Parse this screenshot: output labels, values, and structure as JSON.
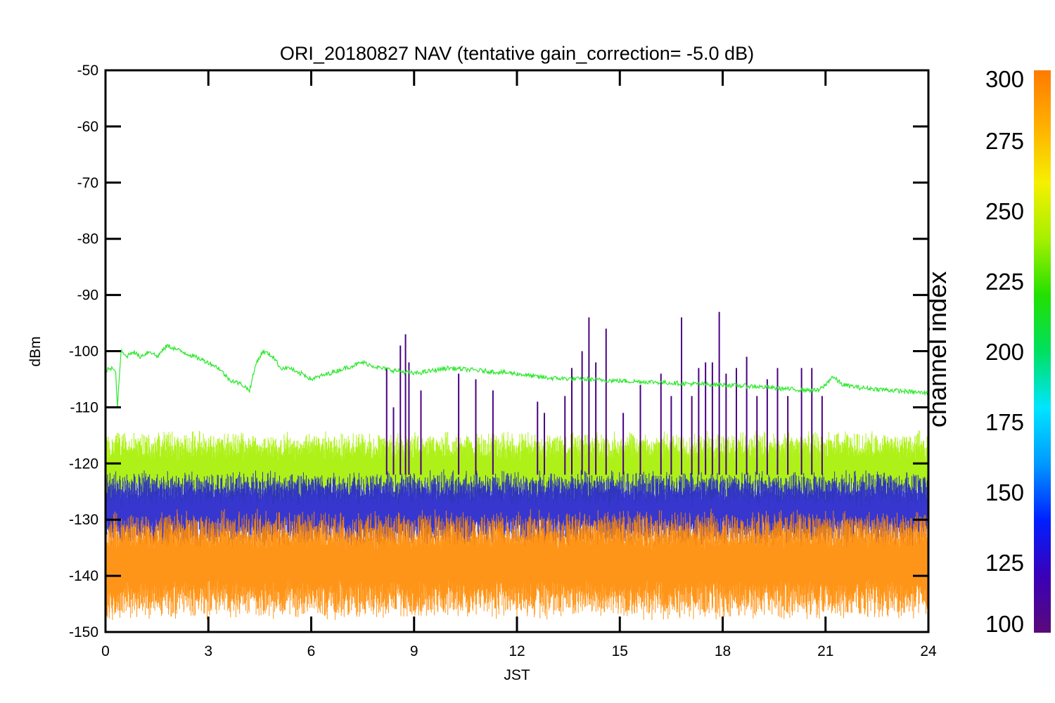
{
  "chart_data": {
    "type": "line",
    "title": "ORI_20180827 NAV (tentative gain_correction= -5.0 dB)",
    "xlabel": "JST",
    "ylabel": "dBm",
    "xlim": [
      0,
      24
    ],
    "ylim": [
      -150,
      -50
    ],
    "xticks": [
      0,
      3,
      6,
      9,
      12,
      15,
      18,
      21,
      24
    ],
    "yticks": [
      -50,
      -60,
      -70,
      -80,
      -90,
      -100,
      -110,
      -120,
      -130,
      -140,
      -150
    ],
    "colorbar": {
      "label": "channel index",
      "range": [
        100,
        300
      ],
      "ticks": [
        100,
        125,
        150,
        175,
        200,
        225,
        250,
        275,
        300
      ],
      "colors": [
        "#5a0a78",
        "#3a00b8",
        "#0020ff",
        "#0099ff",
        "#00e5ff",
        "#00e060",
        "#22e000",
        "#a6f000",
        "#f5f000",
        "#ffb000",
        "#ff7a00"
      ]
    },
    "series": [
      {
        "channel_approx": 240,
        "color": "#2ee82e",
        "x": [
          0,
          0.1,
          0.2,
          0.3,
          0.35,
          0.45,
          0.6,
          0.8,
          1.0,
          1.3,
          1.5,
          1.8,
          2.2,
          2.6,
          3.0,
          3.3,
          3.6,
          4.0,
          4.2,
          4.4,
          4.6,
          4.9,
          5.1,
          5.4,
          5.6,
          5.75,
          6.0,
          6.5,
          7.0,
          7.5,
          8.0,
          8.5,
          9.0,
          10.0,
          11.0,
          12.0,
          12.5,
          13.0,
          14.0,
          15.0,
          16.0,
          17.0,
          18.0,
          19.0,
          20.0,
          20.8,
          21.0,
          21.2,
          21.5,
          22.0,
          23.0,
          24.0
        ],
        "y": [
          -104,
          -103,
          -103,
          -104,
          -110,
          -100,
          -101,
          -100,
          -101,
          -100,
          -101,
          -99,
          -100,
          -101,
          -102,
          -103,
          -105,
          -106,
          -107,
          -102,
          -100,
          -101,
          -103,
          -103,
          -104,
          -104,
          -105,
          -104,
          -103,
          -102,
          -103,
          -103.5,
          -104,
          -103,
          -103.5,
          -104,
          -104.5,
          -104.8,
          -105,
          -105.3,
          -105.5,
          -105.8,
          -106,
          -106.3,
          -106.8,
          -107,
          -106,
          -104.5,
          -106,
          -106.5,
          -107,
          -107.5
        ]
      }
    ],
    "bands": [
      {
        "name_desc": "channel ~255 band",
        "color": "#a6f000",
        "y_center": -121,
        "spread": 6
      },
      {
        "name_desc": "channels 110-200 band",
        "color": "#2222cc",
        "y_center": -128,
        "spread": 6
      },
      {
        "name_desc": "channels 270-300 band",
        "color": "#ff8a00",
        "y_center": -138,
        "spread": 9
      }
    ],
    "spikes": {
      "color": "#4b0082",
      "x": [
        8.2,
        8.4,
        8.6,
        8.75,
        8.85,
        9.2,
        10.3,
        10.8,
        11.3,
        12.6,
        12.8,
        13.4,
        13.6,
        13.9,
        14.1,
        14.3,
        14.6,
        15.1,
        15.6,
        16.2,
        16.5,
        16.8,
        17.1,
        17.3,
        17.5,
        17.7,
        17.9,
        18.1,
        18.4,
        18.7,
        19.0,
        19.3,
        19.6,
        19.9,
        20.3,
        20.6,
        20.9
      ],
      "y": [
        -103,
        -110,
        -99,
        -97,
        -102,
        -107,
        -104,
        -105,
        -107,
        -109,
        -111,
        -108,
        -103,
        -100,
        -94,
        -102,
        -96,
        -111,
        -106,
        -104,
        -108,
        -94,
        -108,
        -103,
        -102,
        -102,
        -93,
        -104,
        -103,
        -101,
        -108,
        -105,
        -103,
        -108,
        -103,
        -103,
        -108
      ]
    }
  }
}
